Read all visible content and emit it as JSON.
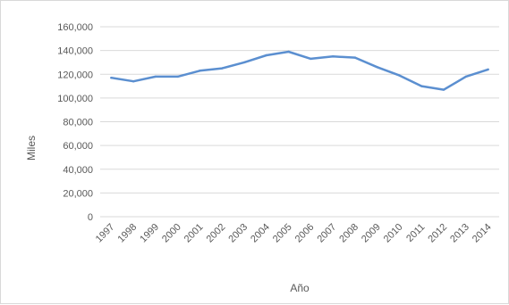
{
  "chart_data": {
    "type": "line",
    "title": "",
    "xlabel": "Año",
    "ylabel": "Miles",
    "ylim": [
      0,
      160000
    ],
    "yticks": [
      "0",
      "20,000",
      "40,000",
      "60,000",
      "80,000",
      "100,000",
      "120,000",
      "140,000",
      "160,000"
    ],
    "grid": true,
    "legend": "none",
    "categories": [
      "1997",
      "1998",
      "1999",
      "2000",
      "2001",
      "2002",
      "2003",
      "2004",
      "2005",
      "2006",
      "2007",
      "2008",
      "2009",
      "2010",
      "2011",
      "2012",
      "2013",
      "2014"
    ],
    "series": [
      {
        "color": "#5b8fd0",
        "values": [
          117000,
          114000,
          118000,
          118000,
          123000,
          125000,
          130000,
          136000,
          139000,
          133000,
          135000,
          134000,
          126000,
          119000,
          110000,
          107000,
          118000,
          124000
        ]
      }
    ]
  }
}
